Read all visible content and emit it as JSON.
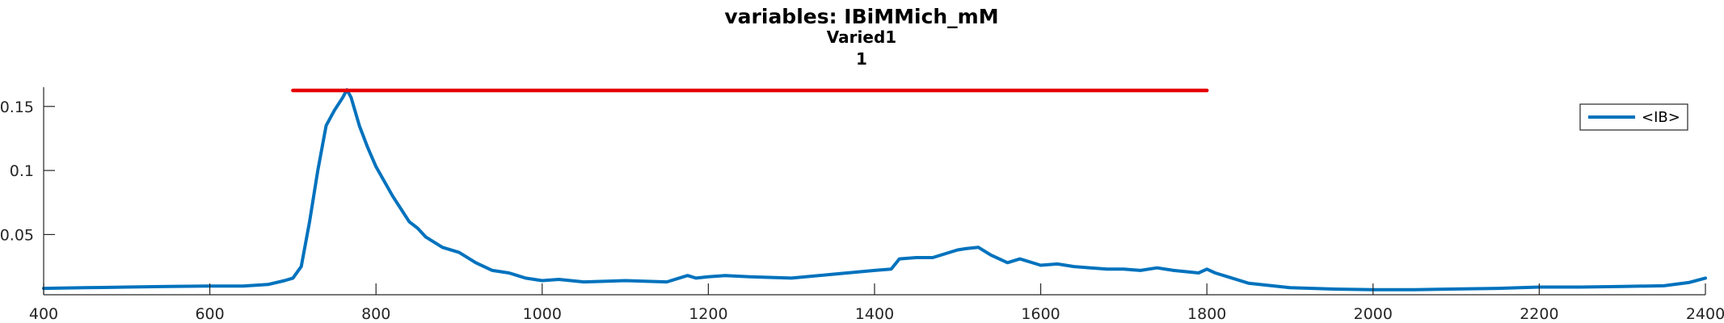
{
  "chart_data": {
    "type": "line",
    "title": "variables: IBiMMich_mM",
    "subtitle_lines": [
      "Varied1",
      "1"
    ],
    "xlabel": "",
    "ylabel": "",
    "xlim": [
      400,
      2400
    ],
    "ylim": [
      0.003,
      0.165
    ],
    "grid": false,
    "legend": {
      "position": "top-right",
      "entries": [
        "<IB>"
      ]
    },
    "x_ticks": [
      {
        "value": 400,
        "label": "400"
      },
      {
        "value": 600,
        "label": "600"
      },
      {
        "value": 800,
        "label": "800"
      },
      {
        "value": 1000,
        "label": "1000"
      },
      {
        "value": 1200,
        "label": "1200"
      },
      {
        "value": 1400,
        "label": "1400"
      },
      {
        "value": 1600,
        "label": "1600"
      },
      {
        "value": 1800,
        "label": "1800"
      },
      {
        "value": 2000,
        "label": "2000"
      },
      {
        "value": 2200,
        "label": "2200"
      },
      {
        "value": 2400,
        "label": "2400"
      }
    ],
    "y_ticks": [
      {
        "value": 0.05,
        "label": "0.05"
      },
      {
        "value": 0.1,
        "label": "0.1"
      },
      {
        "value": 0.15,
        "label": "0.15"
      }
    ],
    "series": [
      {
        "name": "<IB>",
        "color": "#0072BD",
        "x": [
          400,
          450,
          500,
          550,
          600,
          640,
          670,
          690,
          700,
          710,
          720,
          730,
          740,
          750,
          760,
          765,
          770,
          780,
          790,
          800,
          820,
          840,
          850,
          860,
          880,
          900,
          920,
          940,
          960,
          980,
          1000,
          1020,
          1050,
          1100,
          1150,
          1175,
          1185,
          1200,
          1220,
          1250,
          1300,
          1350,
          1400,
          1420,
          1430,
          1450,
          1470,
          1500,
          1510,
          1525,
          1540,
          1560,
          1575,
          1600,
          1620,
          1640,
          1660,
          1680,
          1700,
          1720,
          1740,
          1760,
          1790,
          1800,
          1810,
          1850,
          1900,
          1950,
          2000,
          2050,
          2100,
          2150,
          2200,
          2250,
          2300,
          2350,
          2380,
          2400
        ],
        "y": [
          0.008,
          0.0085,
          0.009,
          0.0095,
          0.0098,
          0.0098,
          0.011,
          0.014,
          0.016,
          0.025,
          0.06,
          0.1,
          0.135,
          0.147,
          0.157,
          0.163,
          0.157,
          0.135,
          0.118,
          0.103,
          0.08,
          0.06,
          0.055,
          0.048,
          0.04,
          0.036,
          0.028,
          0.022,
          0.02,
          0.016,
          0.014,
          0.015,
          0.013,
          0.014,
          0.013,
          0.018,
          0.016,
          0.017,
          0.018,
          0.017,
          0.016,
          0.019,
          0.022,
          0.023,
          0.031,
          0.032,
          0.032,
          0.038,
          0.039,
          0.04,
          0.034,
          0.028,
          0.031,
          0.026,
          0.027,
          0.025,
          0.024,
          0.023,
          0.023,
          0.022,
          0.024,
          0.022,
          0.02,
          0.023,
          0.02,
          0.012,
          0.0085,
          0.0075,
          0.007,
          0.007,
          0.0075,
          0.008,
          0.009,
          0.009,
          0.0095,
          0.01,
          0.0125,
          0.016
        ]
      },
      {
        "name": "",
        "color": "#E50000",
        "x": [
          700,
          1800
        ],
        "y": [
          0.1625,
          0.1625
        ]
      }
    ]
  }
}
